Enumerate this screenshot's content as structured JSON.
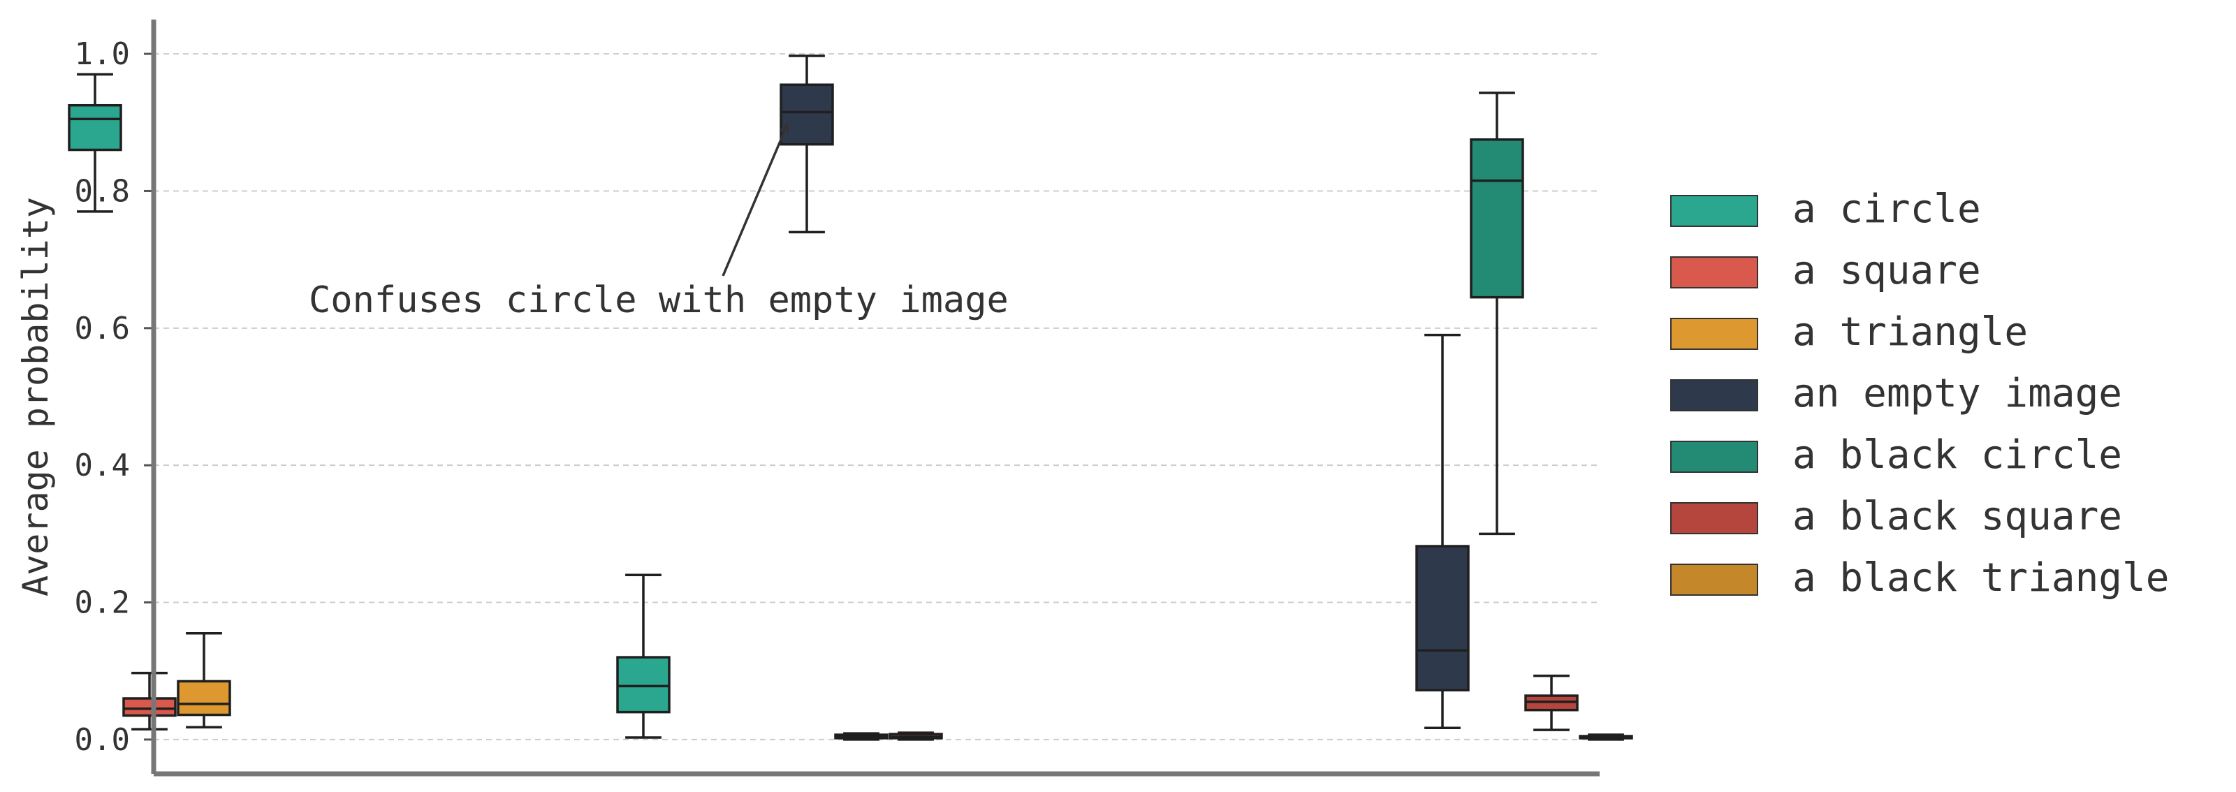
{
  "chart_data": {
    "type": "box",
    "ylabel": "Average probability",
    "xlabel": "",
    "title": "",
    "ylim": [
      -0.05,
      1.05
    ],
    "yticks": [
      "0.0",
      "0.2",
      "0.4",
      "0.6",
      "0.8",
      "1.0"
    ],
    "grid": "horizontal-dashed",
    "legend_position": "right",
    "groups": 3,
    "series": [
      {
        "name": "a circle",
        "color": "#2ba78f",
        "boxes": [
          {
            "group": 0,
            "min": 0.77,
            "q1": 0.86,
            "median": 0.905,
            "q3": 0.925,
            "max": 0.97
          },
          {
            "group": 1,
            "min": 0.003,
            "q1": 0.04,
            "median": 0.078,
            "q3": 0.12,
            "max": 0.24
          }
        ]
      },
      {
        "name": "a square",
        "color": "#d9594c",
        "boxes": [
          {
            "group": 0,
            "min": 0.015,
            "q1": 0.035,
            "median": 0.045,
            "q3": 0.06,
            "max": 0.097
          }
        ]
      },
      {
        "name": "a triangle",
        "color": "#dd992f",
        "boxes": [
          {
            "group": 0,
            "min": 0.018,
            "q1": 0.036,
            "median": 0.052,
            "q3": 0.085,
            "max": 0.155
          }
        ]
      },
      {
        "name": "an empty image",
        "color": "#2e3a4b",
        "boxes": [
          {
            "group": 1,
            "min": 0.74,
            "q1": 0.868,
            "median": 0.915,
            "q3": 0.955,
            "max": 0.997
          },
          {
            "group": 2,
            "min": 0.017,
            "q1": 0.072,
            "median": 0.13,
            "q3": 0.282,
            "max": 0.59
          }
        ]
      },
      {
        "name": "a black circle",
        "color": "#238a74",
        "boxes": [
          {
            "group": 1,
            "min": 0.0,
            "q1": 0.002,
            "median": 0.004,
            "q3": 0.007,
            "max": 0.009
          },
          {
            "group": 2,
            "min": 0.3,
            "q1": 0.645,
            "median": 0.815,
            "q3": 0.875,
            "max": 0.943
          }
        ]
      },
      {
        "name": "a black square",
        "color": "#b4463d",
        "boxes": [
          {
            "group": 1,
            "min": 0.0,
            "q1": 0.002,
            "median": 0.004,
            "q3": 0.008,
            "max": 0.01
          },
          {
            "group": 2,
            "min": 0.014,
            "q1": 0.043,
            "median": 0.055,
            "q3": 0.064,
            "max": 0.093
          }
        ]
      },
      {
        "name": "a black triangle",
        "color": "#c4882a",
        "boxes": [
          {
            "group": 2,
            "min": 0.0,
            "q1": 0.002,
            "median": 0.003,
            "q3": 0.005,
            "max": 0.007
          }
        ]
      }
    ],
    "annotation": {
      "text": "Confuses circle with empty image",
      "points_to": {
        "series": "an empty image",
        "group": 1,
        "value": 0.915
      }
    }
  }
}
